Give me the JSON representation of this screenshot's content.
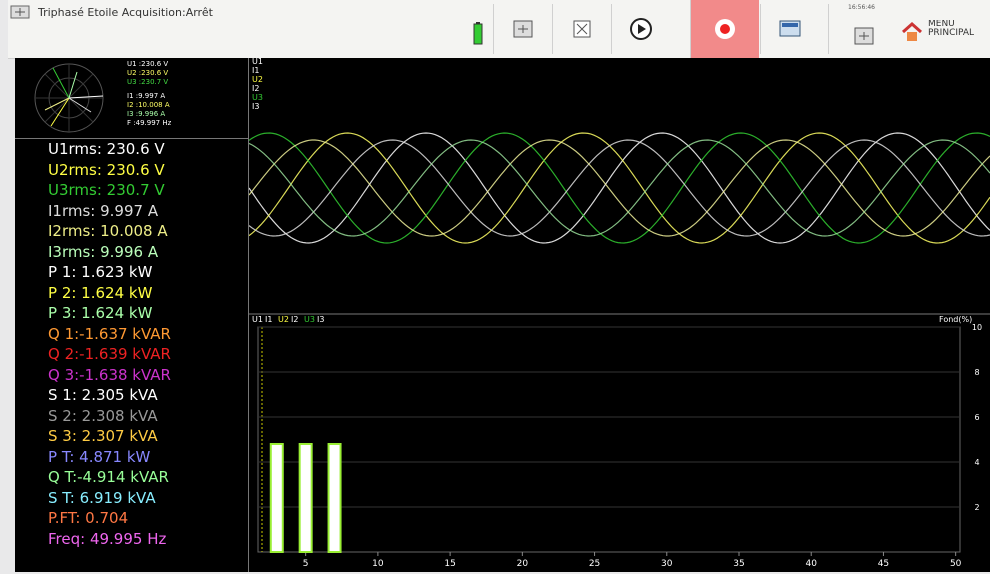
{
  "toolbar": {
    "title": "Triphasé Etoile Acquisition:Arrêt",
    "clock": "16:56:46",
    "menu": "MENU\nPRINCIPAL"
  },
  "phasor": {
    "labels": [
      {
        "text": "U1 :230.6 V",
        "color": "#ffffff"
      },
      {
        "text": "U2 :230.6 V",
        "color": "#ffff66"
      },
      {
        "text": "U3 :230.7 V",
        "color": "#44dd44"
      },
      {
        "text": "I1 :9.997 A",
        "color": "#ffffff"
      },
      {
        "text": "I2 :10.008 A",
        "color": "#ffff66"
      },
      {
        "text": "I3 :9.996 A",
        "color": "#aaffaa"
      },
      {
        "text": "F :49.997 Hz",
        "color": "#ffffff"
      }
    ]
  },
  "measurements": [
    {
      "text": "U1rms: 230.6 V",
      "color": "#ffffff"
    },
    {
      "text": "U2rms: 230.6 V",
      "color": "#ffff44"
    },
    {
      "text": "U3rms: 230.7 V",
      "color": "#33cc33"
    },
    {
      "text": "I1rms: 9.997 A",
      "color": "#dddddd"
    },
    {
      "text": "I2rms: 10.008 A",
      "color": "#eeee88"
    },
    {
      "text": "I3rms: 9.996 A",
      "color": "#bbffbb"
    },
    {
      "text": "P 1: 1.623 kW",
      "color": "#ffffff"
    },
    {
      "text": "P 2: 1.624 kW",
      "color": "#ffff44"
    },
    {
      "text": "P 3: 1.624 kW",
      "color": "#aaffaa"
    },
    {
      "text": "Q 1:-1.637 kVAR",
      "color": "#ff9933"
    },
    {
      "text": "Q 2:-1.639 kVAR",
      "color": "#ee2222"
    },
    {
      "text": "Q 3:-1.638 kVAR",
      "color": "#cc33cc"
    },
    {
      "text": "S 1: 2.305 kVA",
      "color": "#ffffff"
    },
    {
      "text": "S 2: 2.308 kVA",
      "color": "#999999"
    },
    {
      "text": "S 3: 2.307 kVA",
      "color": "#ffcc44"
    },
    {
      "text": "P T: 4.871 kW",
      "color": "#8888ff"
    },
    {
      "text": "Q T:-4.914 kVAR",
      "color": "#99ff99"
    },
    {
      "text": "S T: 6.919 kVA",
      "color": "#88eeff"
    },
    {
      "text": "P.FT: 0.704",
      "color": "#ff7744"
    },
    {
      "text": "Freq: 49.995 Hz",
      "color": "#ee66ee"
    }
  ],
  "waveform": {
    "labels": [
      {
        "text": "U1",
        "color": "#ffffff"
      },
      {
        "text": "I1",
        "color": "#ffffff"
      },
      {
        "text": "U2",
        "color": "#ffff44"
      },
      {
        "text": "I2",
        "color": "#ffffff"
      },
      {
        "text": "U3",
        "color": "#33cc33"
      },
      {
        "text": "I3",
        "color": "#ffffff"
      }
    ]
  },
  "chart_data": {
    "type": "bar",
    "legend": [
      {
        "text": "U1",
        "color": "#ffffff"
      },
      {
        "text": "I1",
        "color": "#ffffff"
      },
      {
        "text": "U2",
        "color": "#ffff44"
      },
      {
        "text": "I2",
        "color": "#ffffff"
      },
      {
        "text": "U3",
        "color": "#33cc33"
      },
      {
        "text": "I3",
        "color": "#ffffff"
      }
    ],
    "y_label": "Fond(%)",
    "x": [
      3,
      5,
      7
    ],
    "values": [
      4.8,
      4.8,
      4.8
    ],
    "color": "#ffffff",
    "xlim": [
      1.7,
      50.3
    ],
    "xticks": [
      5,
      10,
      15,
      20,
      25,
      30,
      35,
      40,
      45,
      50
    ],
    "ylim": [
      0,
      10
    ],
    "yticks": [
      2,
      4,
      6,
      8,
      10
    ],
    "grid": true
  }
}
